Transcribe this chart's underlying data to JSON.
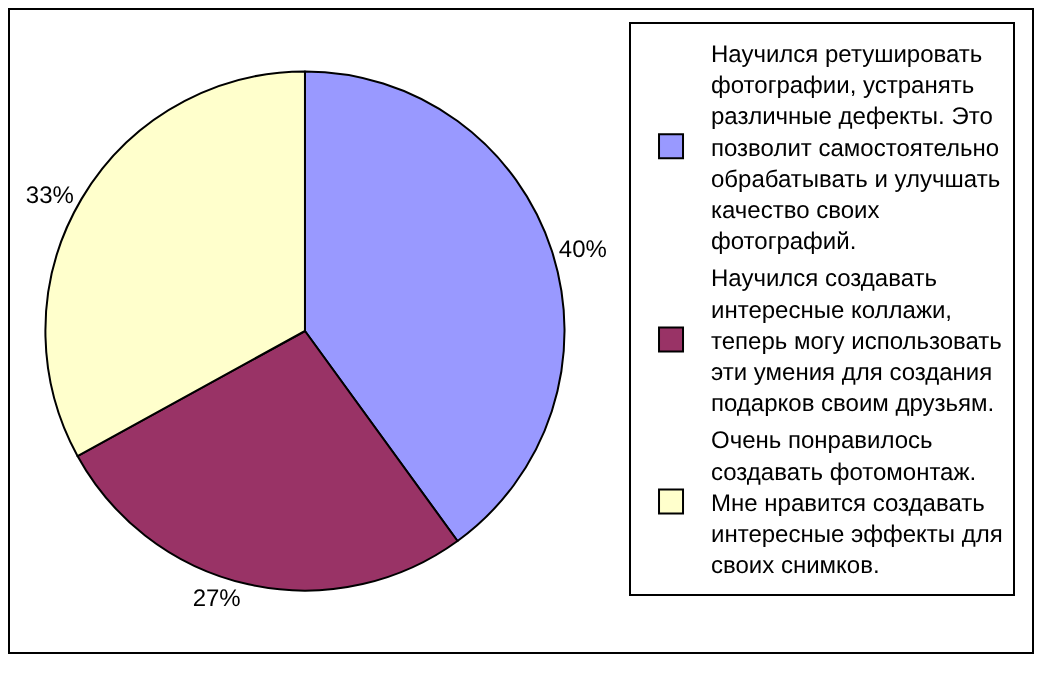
{
  "chart_data": {
    "type": "pie",
    "categories": [
      "Научился ретушировать фотографии, устранять различные дефекты. Это позволит самостоятельно обрабатывать и улучшать качество своих фотографий.",
      "Научился создавать интересные коллажи, теперь могу использовать эти умения для создания подарков своим друзьям.",
      "Очень понравилось создавать фотомонтаж. Мне нравится создавать интересные эффекты для своих снимков."
    ],
    "values": [
      40,
      27,
      33
    ],
    "value_labels": [
      "40%",
      "27%",
      "33%"
    ],
    "colors": [
      "#9999ff",
      "#993366",
      "#ffffcc"
    ],
    "legend": "right"
  }
}
